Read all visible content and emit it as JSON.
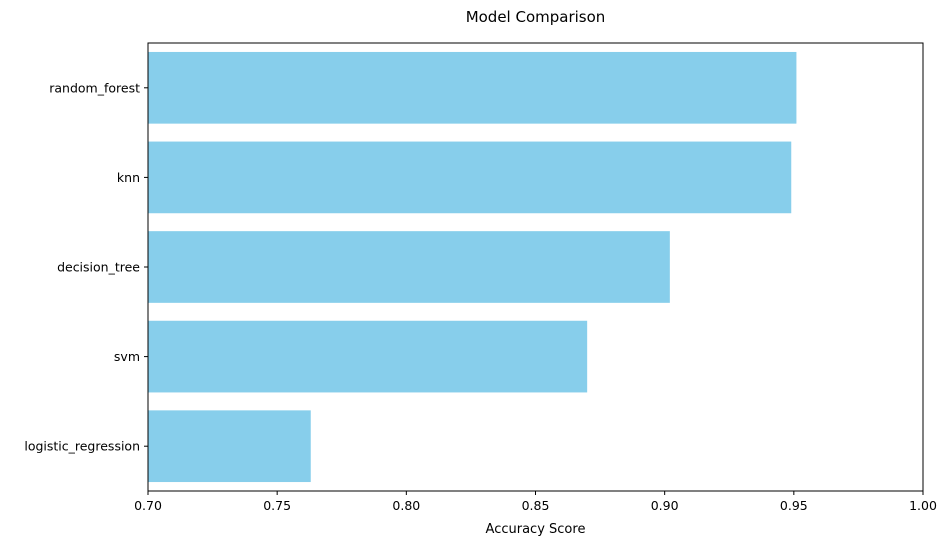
{
  "chart_data": {
    "type": "bar",
    "orientation": "horizontal",
    "title": "Model Comparison",
    "xlabel": "Accuracy Score",
    "ylabel": "",
    "categories": [
      "random_forest",
      "knn",
      "decision_tree",
      "svm",
      "logistic_regression"
    ],
    "values": [
      0.951,
      0.949,
      0.902,
      0.87,
      0.763
    ],
    "xlim": [
      0.7,
      1.0
    ],
    "xticks": [
      "0.70",
      "0.75",
      "0.80",
      "0.85",
      "0.90",
      "0.95",
      "1.00"
    ],
    "grid": false,
    "legend": "none",
    "bar_color": "#87ceeb"
  }
}
